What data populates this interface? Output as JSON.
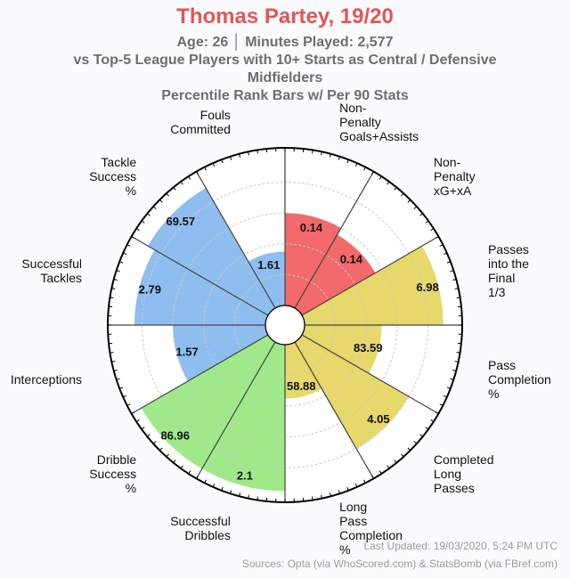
{
  "header": {
    "title": "Thomas Partey, 19/20",
    "age_line": "Age: 26 │ Minutes Played: 2,577",
    "comparison_line1": "vs Top-5 League Players with 10+ Starts as Central / Defensive",
    "comparison_line2": "Midfielders",
    "subtitle": "Percentile Rank Bars w/ Per 90 Stats"
  },
  "footer": {
    "updated": "Last Updated: 19/03/2020, 5:24 PM UTC",
    "sources": "Sources: Opta (via WhoScored.com) & StatsBomb (via FBref.com)"
  },
  "chart_data": {
    "type": "bar",
    "polar": true,
    "title": "Thomas Partey, 19/20",
    "ylim": [
      0,
      100
    ],
    "grid": true,
    "categories": [
      "Non-Penalty Goals+Assists",
      "Non-Penalty xG+xA",
      "Passes into the Final 1/3",
      "Pass Completion %",
      "Completed Long Passes",
      "Long Pass Completion %",
      "Successful Dribbles",
      "Dribble Success %",
      "Interceptions",
      "Successful Tackles",
      "Tackle Success %",
      "Fouls Committed"
    ],
    "label_lines": [
      [
        "Non-",
        "Penalty",
        "Goals+Assists"
      ],
      [
        "Non-",
        "Penalty",
        "xG+xA"
      ],
      [
        "Passes",
        "into the",
        "Final",
        "1/3"
      ],
      [
        "Pass",
        "Completion",
        "%"
      ],
      [
        "Completed",
        "Long",
        "Passes"
      ],
      [
        "Long",
        "Pass",
        "Completion",
        "%"
      ],
      [
        "Successful",
        "Dribbles"
      ],
      [
        "Dribble",
        "Success",
        "%"
      ],
      [
        "Interceptions"
      ],
      [
        "Successful",
        "Tackles"
      ],
      [
        "Tackle",
        "Success",
        "%"
      ],
      [
        "Fouls",
        "Committed"
      ]
    ],
    "stat_values": [
      "0.14",
      "0.14",
      "6.98",
      "83.59",
      "4.05",
      "58.88",
      "2.1",
      "86.96",
      "1.57",
      "2.79",
      "69.57",
      "1.61"
    ],
    "percentiles": [
      60,
      55,
      90,
      50,
      80,
      35,
      95,
      95,
      60,
      85,
      90,
      35
    ],
    "groups": [
      "attacking",
      "attacking",
      "possession",
      "possession",
      "possession",
      "possession",
      "dribbling",
      "dribbling",
      "defending",
      "defending",
      "defending",
      "defending"
    ],
    "colors": {
      "attacking": "#f26a6c",
      "possession": "#e6d86a",
      "dribbling": "#9fe98a",
      "defending": "#8ebeef"
    }
  }
}
